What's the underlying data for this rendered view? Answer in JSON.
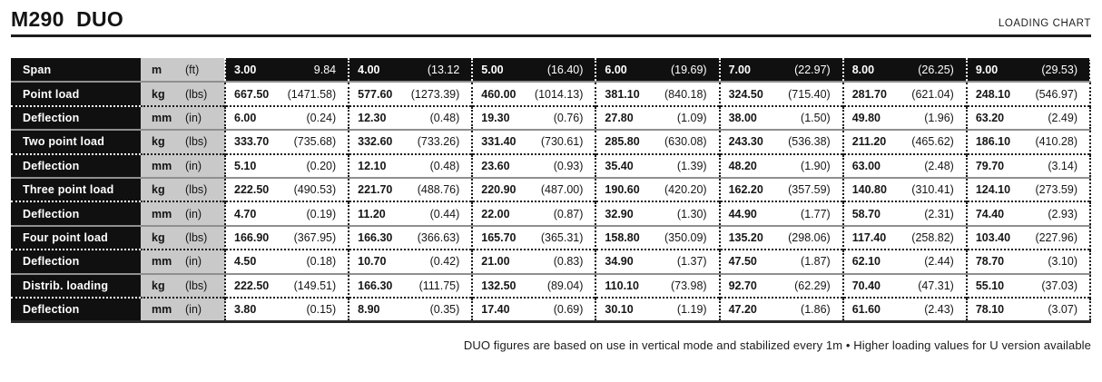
{
  "header": {
    "title": "M290  DUO",
    "corner_label": "LOADING CHART"
  },
  "colors": {
    "row_label_bg": "#101010",
    "unit_column_bg": "#c9c9c9",
    "text": "#161616"
  },
  "table": {
    "rows": [
      {
        "kind": "span",
        "label": "Span",
        "unit": [
          "m",
          "(ft)"
        ],
        "values": [
          [
            "3.00",
            "9.84"
          ],
          [
            "4.00",
            "(13.12"
          ],
          [
            "5.00",
            "(16.40)"
          ],
          [
            "6.00",
            "(19.69)"
          ],
          [
            "7.00",
            "(22.97)"
          ],
          [
            "8.00",
            "(26.25)"
          ],
          [
            "9.00",
            "(29.53)"
          ]
        ]
      },
      {
        "kind": "load",
        "label": "Point load",
        "unit": [
          "kg",
          "(lbs)"
        ],
        "values": [
          [
            "667.50",
            "(1471.58)"
          ],
          [
            "577.60",
            "(1273.39)"
          ],
          [
            "460.00",
            "(1014.13)"
          ],
          [
            "381.10",
            "(840.18)"
          ],
          [
            "324.50",
            "(715.40)"
          ],
          [
            "281.70",
            "(621.04)"
          ],
          [
            "248.10",
            "(546.97)"
          ]
        ]
      },
      {
        "kind": "deflection",
        "label": "Deflection",
        "unit": [
          "mm",
          "(in)"
        ],
        "values": [
          [
            "6.00",
            "(0.24)"
          ],
          [
            "12.30",
            "(0.48)"
          ],
          [
            "19.30",
            "(0.76)"
          ],
          [
            "27.80",
            "(1.09)"
          ],
          [
            "38.00",
            "(1.50)"
          ],
          [
            "49.80",
            "(1.96)"
          ],
          [
            "63.20",
            "(2.49)"
          ]
        ]
      },
      {
        "kind": "load",
        "label": "Two point load",
        "unit": [
          "kg",
          "(lbs)"
        ],
        "values": [
          [
            "333.70",
            "(735.68)"
          ],
          [
            "332.60",
            "(733.26)"
          ],
          [
            "331.40",
            "(730.61)"
          ],
          [
            "285.80",
            "(630.08)"
          ],
          [
            "243.30",
            "(536.38)"
          ],
          [
            "211.20",
            "(465.62)"
          ],
          [
            "186.10",
            "(410.28)"
          ]
        ]
      },
      {
        "kind": "deflection",
        "label": "Deflection",
        "unit": [
          "mm",
          "(in)"
        ],
        "values": [
          [
            "5.10",
            "(0.20)"
          ],
          [
            "12.10",
            "(0.48)"
          ],
          [
            "23.60",
            "(0.93)"
          ],
          [
            "35.40",
            "(1.39)"
          ],
          [
            "48.20",
            "(1.90)"
          ],
          [
            "63.00",
            "(2.48)"
          ],
          [
            "79.70",
            "(3.14)"
          ]
        ]
      },
      {
        "kind": "load",
        "label": "Three point load",
        "unit": [
          "kg",
          "(lbs)"
        ],
        "values": [
          [
            "222.50",
            "(490.53)"
          ],
          [
            "221.70",
            "(488.76)"
          ],
          [
            "220.90",
            "(487.00)"
          ],
          [
            "190.60",
            "(420.20)"
          ],
          [
            "162.20",
            "(357.59)"
          ],
          [
            "140.80",
            "(310.41)"
          ],
          [
            "124.10",
            "(273.59)"
          ]
        ]
      },
      {
        "kind": "deflection",
        "label": "Deflection",
        "unit": [
          "mm",
          "(in)"
        ],
        "values": [
          [
            "4.70",
            "(0.19)"
          ],
          [
            "11.20",
            "(0.44)"
          ],
          [
            "22.00",
            "(0.87)"
          ],
          [
            "32.90",
            "(1.30)"
          ],
          [
            "44.90",
            "(1.77)"
          ],
          [
            "58.70",
            "(2.31)"
          ],
          [
            "74.40",
            "(2.93)"
          ]
        ]
      },
      {
        "kind": "load",
        "label": "Four point load",
        "unit": [
          "kg",
          "(lbs)"
        ],
        "values": [
          [
            "166.90",
            "(367.95)"
          ],
          [
            "166.30",
            "(366.63)"
          ],
          [
            "165.70",
            "(365.31)"
          ],
          [
            "158.80",
            "(350.09)"
          ],
          [
            "135.20",
            "(298.06)"
          ],
          [
            "117.40",
            "(258.82)"
          ],
          [
            "103.40",
            "(227.96)"
          ]
        ]
      },
      {
        "kind": "deflection",
        "label": "Deflection",
        "unit": [
          "mm",
          "(in)"
        ],
        "values": [
          [
            "4.50",
            "(0.18)"
          ],
          [
            "10.70",
            "(0.42)"
          ],
          [
            "21.00",
            "(0.83)"
          ],
          [
            "34.90",
            "(1.37)"
          ],
          [
            "47.50",
            "(1.87)"
          ],
          [
            "62.10",
            "(2.44)"
          ],
          [
            "78.70",
            "(3.10)"
          ]
        ]
      },
      {
        "kind": "load",
        "label": "Distrib. loading",
        "unit": [
          "kg",
          "(lbs)"
        ],
        "values": [
          [
            "222.50",
            "(149.51)"
          ],
          [
            "166.30",
            "(111.75)"
          ],
          [
            "132.50",
            "(89.04)"
          ],
          [
            "110.10",
            "(73.98)"
          ],
          [
            "92.70",
            "(62.29)"
          ],
          [
            "70.40",
            "(47.31)"
          ],
          [
            "55.10",
            "(37.03)"
          ]
        ]
      },
      {
        "kind": "deflection",
        "label": "Deflection",
        "unit": [
          "mm",
          "(in)"
        ],
        "values": [
          [
            "3.80",
            "(0.15)"
          ],
          [
            "8.90",
            "(0.35)"
          ],
          [
            "17.40",
            "(0.69)"
          ],
          [
            "30.10",
            "(1.19)"
          ],
          [
            "47.20",
            "(1.86)"
          ],
          [
            "61.60",
            "(2.43)"
          ],
          [
            "78.10",
            "(3.07)"
          ]
        ]
      }
    ]
  },
  "footer": {
    "note": "DUO figures are based on use in vertical mode and stabilized every 1m • Higher loading values for U version available"
  }
}
